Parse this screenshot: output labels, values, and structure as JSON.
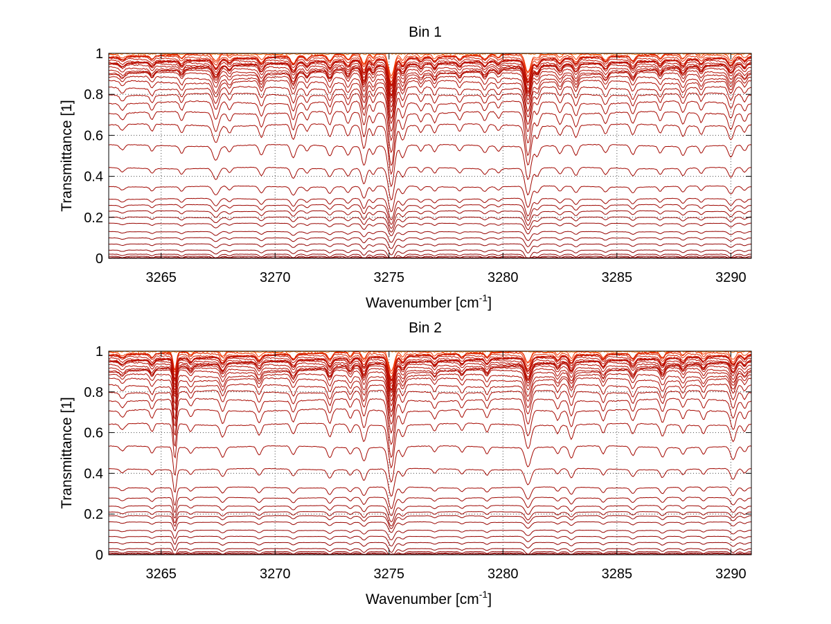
{
  "chart_data": [
    {
      "type": "line",
      "title": "Bin 1",
      "xlabel": "Wavenumber [cm",
      "xlabel_sup": "-1",
      "xlabel_close": "]",
      "ylabel": "Transmittance [1]",
      "xlim": [
        3262.7,
        3290.9
      ],
      "ylim": [
        0,
        1
      ],
      "xticks": [
        3265,
        3270,
        3275,
        3280,
        3285,
        3290
      ],
      "xtick_labels": [
        "3265",
        "3270",
        "3275",
        "3280",
        "3285",
        "3290"
      ],
      "yticks": [
        0,
        0.2,
        0.4,
        0.6,
        0.8,
        1
      ],
      "ytick_labels": [
        "0",
        "0.2",
        "0.4",
        "0.6",
        "0.8",
        "1"
      ],
      "grid": true,
      "legend": "none",
      "baselines": [
        1.0,
        0.995,
        0.99,
        0.985,
        0.98,
        0.975,
        0.97,
        0.965,
        0.96,
        0.955,
        0.95,
        0.945,
        0.94,
        0.93,
        0.92,
        0.91,
        0.9,
        0.88,
        0.86,
        0.83,
        0.8,
        0.76,
        0.71,
        0.65,
        0.55,
        0.44,
        0.35,
        0.29,
        0.26,
        0.23,
        0.2,
        0.17,
        0.13,
        0.1,
        0.07,
        0.04,
        0.02,
        0.01,
        0.0
      ],
      "absorption_lines": [
        {
          "x": 3263.3,
          "depth": 0.05,
          "width": 0.15
        },
        {
          "x": 3264.6,
          "depth": 0.06,
          "width": 0.12
        },
        {
          "x": 3265.9,
          "depth": 0.07,
          "width": 0.12
        },
        {
          "x": 3267.4,
          "depth": 0.14,
          "width": 0.18
        },
        {
          "x": 3268.0,
          "depth": 0.06,
          "width": 0.12
        },
        {
          "x": 3269.4,
          "depth": 0.1,
          "width": 0.14
        },
        {
          "x": 3270.8,
          "depth": 0.13,
          "width": 0.15
        },
        {
          "x": 3271.4,
          "depth": 0.06,
          "width": 0.12
        },
        {
          "x": 3272.4,
          "depth": 0.1,
          "width": 0.14
        },
        {
          "x": 3273.2,
          "depth": 0.09,
          "width": 0.14
        },
        {
          "x": 3273.9,
          "depth": 0.19,
          "width": 0.14
        },
        {
          "x": 3274.3,
          "depth": 0.08,
          "width": 0.12
        },
        {
          "x": 3275.1,
          "depth": 0.4,
          "width": 0.18
        },
        {
          "x": 3275.6,
          "depth": 0.12,
          "width": 0.15
        },
        {
          "x": 3276.4,
          "depth": 0.06,
          "width": 0.12
        },
        {
          "x": 3277.0,
          "depth": 0.07,
          "width": 0.12
        },
        {
          "x": 3278.1,
          "depth": 0.06,
          "width": 0.12
        },
        {
          "x": 3279.2,
          "depth": 0.07,
          "width": 0.14
        },
        {
          "x": 3279.8,
          "depth": 0.05,
          "width": 0.12
        },
        {
          "x": 3281.1,
          "depth": 0.33,
          "width": 0.18
        },
        {
          "x": 3281.5,
          "depth": 0.1,
          "width": 0.14
        },
        {
          "x": 3282.5,
          "depth": 0.08,
          "width": 0.14
        },
        {
          "x": 3283.2,
          "depth": 0.1,
          "width": 0.14
        },
        {
          "x": 3284.5,
          "depth": 0.08,
          "width": 0.14
        },
        {
          "x": 3285.7,
          "depth": 0.09,
          "width": 0.14
        },
        {
          "x": 3286.9,
          "depth": 0.07,
          "width": 0.12
        },
        {
          "x": 3287.9,
          "depth": 0.09,
          "width": 0.14
        },
        {
          "x": 3288.7,
          "depth": 0.07,
          "width": 0.12
        },
        {
          "x": 3290.0,
          "depth": 0.12,
          "width": 0.16
        },
        {
          "x": 3290.6,
          "depth": 0.06,
          "width": 0.12
        }
      ]
    },
    {
      "type": "line",
      "title": "Bin 2",
      "xlabel": "Wavenumber [cm",
      "xlabel_sup": "-1",
      "xlabel_close": "]",
      "ylabel": "Transmittance [1]",
      "xlim": [
        3262.7,
        3290.9
      ],
      "ylim": [
        0,
        1
      ],
      "xticks": [
        3265,
        3270,
        3275,
        3280,
        3285,
        3290
      ],
      "xtick_labels": [
        "3265",
        "3270",
        "3275",
        "3280",
        "3285",
        "3290"
      ],
      "yticks": [
        0,
        0.2,
        0.4,
        0.6,
        0.8,
        1
      ],
      "ytick_labels": [
        "0",
        "0.2",
        "0.4",
        "0.6",
        "0.8",
        "1"
      ],
      "grid": true,
      "legend": "none",
      "baselines": [
        1.0,
        0.995,
        0.99,
        0.985,
        0.98,
        0.975,
        0.97,
        0.965,
        0.96,
        0.955,
        0.95,
        0.945,
        0.94,
        0.93,
        0.92,
        0.91,
        0.9,
        0.88,
        0.86,
        0.83,
        0.8,
        0.76,
        0.71,
        0.64,
        0.53,
        0.42,
        0.33,
        0.28,
        0.24,
        0.21,
        0.19,
        0.16,
        0.12,
        0.09,
        0.06,
        0.03,
        0.015,
        0.008,
        0.0
      ],
      "absorption_lines": [
        {
          "x": 3263.3,
          "depth": 0.05,
          "width": 0.15
        },
        {
          "x": 3264.6,
          "depth": 0.07,
          "width": 0.12
        },
        {
          "x": 3265.6,
          "depth": 0.3,
          "width": 0.1
        },
        {
          "x": 3266.3,
          "depth": 0.06,
          "width": 0.12
        },
        {
          "x": 3267.7,
          "depth": 0.1,
          "width": 0.14
        },
        {
          "x": 3269.3,
          "depth": 0.09,
          "width": 0.14
        },
        {
          "x": 3270.8,
          "depth": 0.09,
          "width": 0.14
        },
        {
          "x": 3272.4,
          "depth": 0.11,
          "width": 0.14
        },
        {
          "x": 3273.3,
          "depth": 0.07,
          "width": 0.12
        },
        {
          "x": 3273.9,
          "depth": 0.14,
          "width": 0.14
        },
        {
          "x": 3275.1,
          "depth": 0.36,
          "width": 0.18
        },
        {
          "x": 3275.6,
          "depth": 0.1,
          "width": 0.14
        },
        {
          "x": 3277.0,
          "depth": 0.06,
          "width": 0.12
        },
        {
          "x": 3278.2,
          "depth": 0.06,
          "width": 0.12
        },
        {
          "x": 3279.3,
          "depth": 0.07,
          "width": 0.12
        },
        {
          "x": 3281.1,
          "depth": 0.2,
          "width": 0.18
        },
        {
          "x": 3282.4,
          "depth": 0.07,
          "width": 0.12
        },
        {
          "x": 3283.0,
          "depth": 0.12,
          "width": 0.14
        },
        {
          "x": 3284.4,
          "depth": 0.08,
          "width": 0.12
        },
        {
          "x": 3285.7,
          "depth": 0.09,
          "width": 0.14
        },
        {
          "x": 3287.0,
          "depth": 0.1,
          "width": 0.14
        },
        {
          "x": 3287.9,
          "depth": 0.07,
          "width": 0.12
        },
        {
          "x": 3288.8,
          "depth": 0.07,
          "width": 0.12
        },
        {
          "x": 3290.1,
          "depth": 0.14,
          "width": 0.16
        },
        {
          "x": 3290.6,
          "depth": 0.06,
          "width": 0.12
        }
      ]
    }
  ],
  "colors": {
    "dark_trace": "#8b0000",
    "mid_trace": "#c01000",
    "light_trace": "#ff4000",
    "top_trace": "#ff7000",
    "grid": "#444444",
    "axis": "#000000"
  }
}
